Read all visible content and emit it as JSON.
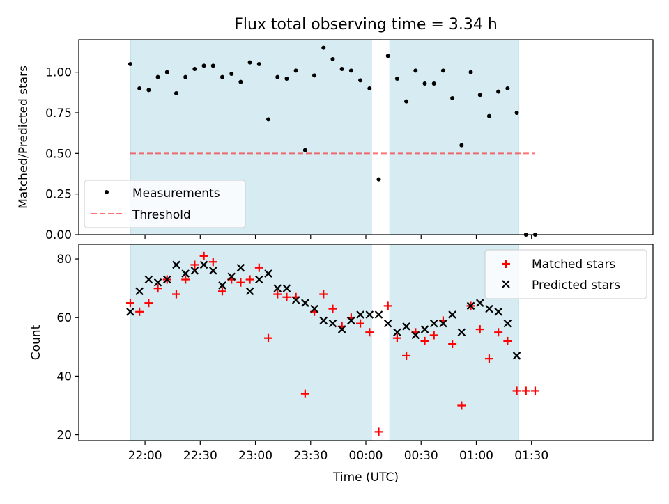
{
  "title": "Flux total observing time = 3.34 h",
  "colors": {
    "shade": "#add8e6",
    "measurement": "#000000",
    "threshold": "#ff0000",
    "matched": "#ff0000",
    "predicted": "#000000"
  },
  "chart_data": [
    {
      "type": "scatter",
      "title": "Flux total observing time = 3.34 h",
      "ylabel": "Matched/Predicted stars",
      "xlabel": "",
      "xlim": [
        -36,
        276
      ],
      "ylim": [
        0,
        1.2
      ],
      "yticks": [
        0.0,
        0.25,
        0.5,
        0.75,
        1.0
      ],
      "ytick_labels": [
        "0.00",
        "0.25",
        "0.50",
        "0.75",
        "1.00"
      ],
      "legend": [
        "Measurements",
        "Threshold"
      ],
      "legend_position": "lower-left",
      "shaded_intervals": [
        [
          "21:52",
          "00:03"
        ],
        [
          "00:13",
          "01:23"
        ]
      ],
      "threshold": {
        "name": "Threshold",
        "value": 0.5,
        "x_range": [
          "21:52",
          "01:32"
        ]
      },
      "series": [
        {
          "name": "Measurements",
          "x": [
            "21:52",
            "21:57",
            "22:02",
            "22:07",
            "22:12",
            "22:17",
            "22:22",
            "22:27",
            "22:32",
            "22:37",
            "22:42",
            "22:47",
            "22:52",
            "22:57",
            "23:02",
            "23:07",
            "23:12",
            "23:17",
            "23:22",
            "23:27",
            "23:32",
            "23:37",
            "23:42",
            "23:47",
            "23:52",
            "23:57",
            "00:02",
            "00:07",
            "00:12",
            "00:17",
            "00:22",
            "00:27",
            "00:32",
            "00:37",
            "00:42",
            "00:47",
            "00:52",
            "00:57",
            "01:02",
            "01:07",
            "01:12",
            "01:17",
            "01:22",
            "01:27",
            "01:32"
          ],
          "y": [
            1.05,
            0.9,
            0.89,
            0.97,
            1.0,
            0.87,
            0.97,
            1.02,
            1.04,
            1.04,
            0.97,
            0.99,
            0.94,
            1.06,
            1.05,
            0.71,
            0.97,
            0.96,
            1.01,
            0.52,
            0.98,
            1.15,
            1.08,
            1.02,
            1.01,
            0.95,
            0.9,
            0.34,
            1.1,
            0.96,
            0.82,
            1.01,
            0.93,
            0.93,
            1.01,
            0.84,
            0.55,
            1.0,
            0.86,
            0.73,
            0.88,
            0.9,
            0.75,
            0.0,
            0.0
          ]
        }
      ]
    },
    {
      "type": "scatter",
      "title": "",
      "ylabel": "Count",
      "xlabel": "Time (UTC)",
      "xlim": [
        -36,
        276
      ],
      "ylim": [
        18,
        85
      ],
      "yticks": [
        20,
        40,
        60,
        80
      ],
      "ytick_labels": [
        "20",
        "40",
        "60",
        "80"
      ],
      "xtick_labels": [
        "22:00",
        "22:30",
        "23:00",
        "23:30",
        "00:00",
        "00:30",
        "01:00",
        "01:30"
      ],
      "legend": [
        "Matched stars",
        "Predicted stars"
      ],
      "legend_position": "top-right",
      "shaded_intervals": [
        [
          "21:52",
          "00:03"
        ],
        [
          "00:13",
          "01:23"
        ]
      ],
      "series": [
        {
          "name": "Matched stars",
          "x": [
            "21:52",
            "21:57",
            "22:02",
            "22:07",
            "22:12",
            "22:17",
            "22:22",
            "22:27",
            "22:32",
            "22:37",
            "22:42",
            "22:47",
            "22:52",
            "22:57",
            "23:02",
            "23:07",
            "23:12",
            "23:17",
            "23:22",
            "23:27",
            "23:32",
            "23:37",
            "23:42",
            "23:47",
            "23:52",
            "23:57",
            "00:02",
            "00:07",
            "00:12",
            "00:17",
            "00:22",
            "00:27",
            "00:32",
            "00:37",
            "00:42",
            "00:47",
            "00:52",
            "00:57",
            "01:02",
            "01:07",
            "01:12",
            "01:17",
            "01:22",
            "01:27",
            "01:32"
          ],
          "y": [
            65,
            62,
            65,
            70,
            73,
            68,
            73,
            78,
            81,
            79,
            69,
            73,
            72,
            73,
            77,
            53,
            68,
            67,
            67,
            34,
            62,
            68,
            63,
            57,
            60,
            58,
            55,
            21,
            64,
            53,
            47,
            55,
            52,
            54,
            59,
            51,
            30,
            64,
            56,
            46,
            55,
            52,
            35,
            35,
            35
          ]
        },
        {
          "name": "Predicted stars",
          "x": [
            "21:52",
            "21:57",
            "22:02",
            "22:07",
            "22:12",
            "22:17",
            "22:22",
            "22:27",
            "22:32",
            "22:37",
            "22:42",
            "22:47",
            "22:52",
            "22:57",
            "23:02",
            "23:07",
            "23:12",
            "23:17",
            "23:22",
            "23:27",
            "23:32",
            "23:37",
            "23:42",
            "23:47",
            "23:52",
            "23:57",
            "00:02",
            "00:07",
            "00:12",
            "00:17",
            "00:22",
            "00:27",
            "00:32",
            "00:37",
            "00:42",
            "00:47",
            "00:52",
            "00:57",
            "01:02",
            "01:07",
            "01:12",
            "01:17",
            "01:22"
          ],
          "y": [
            62,
            69,
            73,
            72,
            73,
            78,
            75,
            76,
            78,
            76,
            71,
            74,
            77,
            69,
            73,
            75,
            70,
            70,
            66,
            65,
            63,
            59,
            58,
            56,
            59,
            61,
            61,
            61,
            58,
            55,
            57,
            54,
            56,
            58,
            58,
            61,
            55,
            64,
            65,
            63,
            62,
            58,
            47
          ]
        }
      ]
    }
  ]
}
